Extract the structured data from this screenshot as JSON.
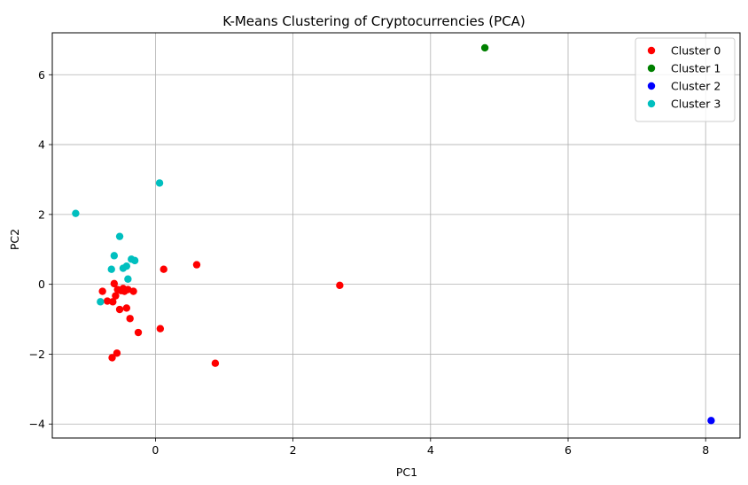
{
  "chart_data": {
    "type": "scatter",
    "title": "K-Means Clustering of Cryptocurrencies (PCA)",
    "xlabel": "PC1",
    "ylabel": "PC2",
    "xlim": [
      -1.5,
      8.5
    ],
    "ylim": [
      -4.4,
      7.2
    ],
    "xticks": [
      0,
      2,
      4,
      6,
      8
    ],
    "yticks": [
      -4,
      -2,
      0,
      2,
      4,
      6
    ],
    "grid": true,
    "legend_position": "top-right",
    "series": [
      {
        "name": "Cluster 0",
        "color": "#ff0000",
        "points": [
          [
            -0.77,
            -0.2
          ],
          [
            -0.7,
            -0.48
          ],
          [
            -0.62,
            -0.5
          ],
          [
            -0.6,
            0.02
          ],
          [
            -0.58,
            -0.33
          ],
          [
            -0.55,
            -0.15
          ],
          [
            -0.52,
            -0.72
          ],
          [
            -0.5,
            -0.18
          ],
          [
            -0.47,
            -0.12
          ],
          [
            -0.45,
            -0.2
          ],
          [
            -0.42,
            -0.68
          ],
          [
            -0.4,
            -0.15
          ],
          [
            -0.37,
            -0.98
          ],
          [
            -0.32,
            -0.2
          ],
          [
            -0.25,
            -1.38
          ],
          [
            -0.63,
            -2.1
          ],
          [
            -0.56,
            -1.97
          ],
          [
            0.07,
            -1.27
          ],
          [
            0.12,
            0.43
          ],
          [
            0.6,
            0.56
          ],
          [
            0.87,
            -2.26
          ],
          [
            2.68,
            -0.03
          ]
        ]
      },
      {
        "name": "Cluster 1",
        "color": "#008000",
        "points": [
          [
            4.79,
            6.77
          ]
        ]
      },
      {
        "name": "Cluster 2",
        "color": "#0000ff",
        "points": [
          [
            8.08,
            -3.9
          ]
        ]
      },
      {
        "name": "Cluster 3",
        "color": "#00bfbf",
        "points": [
          [
            -1.16,
            2.03
          ],
          [
            -0.8,
            -0.5
          ],
          [
            -0.64,
            0.43
          ],
          [
            -0.6,
            0.82
          ],
          [
            -0.52,
            1.37
          ],
          [
            -0.47,
            0.46
          ],
          [
            -0.42,
            0.52
          ],
          [
            -0.4,
            0.15
          ],
          [
            -0.35,
            0.72
          ],
          [
            -0.3,
            0.68
          ],
          [
            0.06,
            2.9
          ]
        ]
      }
    ]
  }
}
